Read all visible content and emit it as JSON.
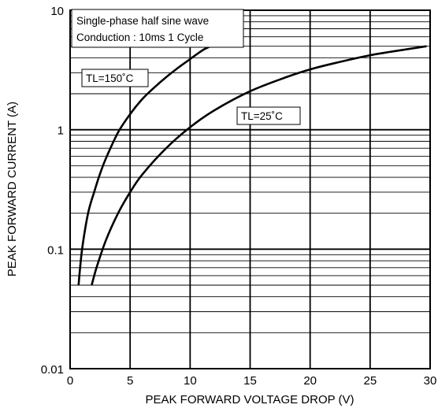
{
  "chart_data": {
    "type": "line",
    "title": "",
    "xlabel": "PEAK FORWARD VOLTAGE DROP (V)",
    "ylabel": "PEAK FORWARD CURRENT (A)",
    "xlim": [
      0,
      30
    ],
    "ylim": [
      0.01,
      10
    ],
    "yscale": "log",
    "grid": true,
    "x_ticks": [
      0,
      5,
      10,
      15,
      20,
      25,
      30
    ],
    "x_tick_labels": [
      "0",
      "5",
      "10",
      "15",
      "20",
      "25",
      "30"
    ],
    "y_ticks": [
      0.01,
      0.1,
      1,
      10
    ],
    "y_tick_labels": [
      "0.01",
      "0.1",
      "1",
      "10"
    ],
    "annotation": {
      "line1": "Single-phase half sine wave",
      "line2": "Conduction : 10ms 1 Cycle"
    },
    "series": [
      {
        "name": "TL=150˚C",
        "x": [
          0.7,
          1.0,
          1.5,
          2.0,
          2.5,
          3.0,
          4.0,
          5.0,
          6.0,
          7.0,
          8.0,
          9.0,
          10.0,
          11.0,
          11.7
        ],
        "y": [
          0.05,
          0.1,
          0.2,
          0.3,
          0.43,
          0.58,
          0.95,
          1.35,
          1.8,
          2.25,
          2.75,
          3.3,
          3.9,
          4.6,
          5.0
        ]
      },
      {
        "name": "TL=25˚C",
        "x": [
          1.8,
          2.2,
          3.0,
          4.0,
          5.0,
          6.0,
          8.0,
          10.0,
          12.0,
          15.0,
          18.0,
          20.0,
          22.0,
          25.0,
          28.0,
          29.7
        ],
        "y": [
          0.05,
          0.07,
          0.12,
          0.2,
          0.3,
          0.42,
          0.7,
          1.05,
          1.45,
          2.1,
          2.75,
          3.2,
          3.6,
          4.2,
          4.7,
          5.0
        ]
      }
    ]
  }
}
